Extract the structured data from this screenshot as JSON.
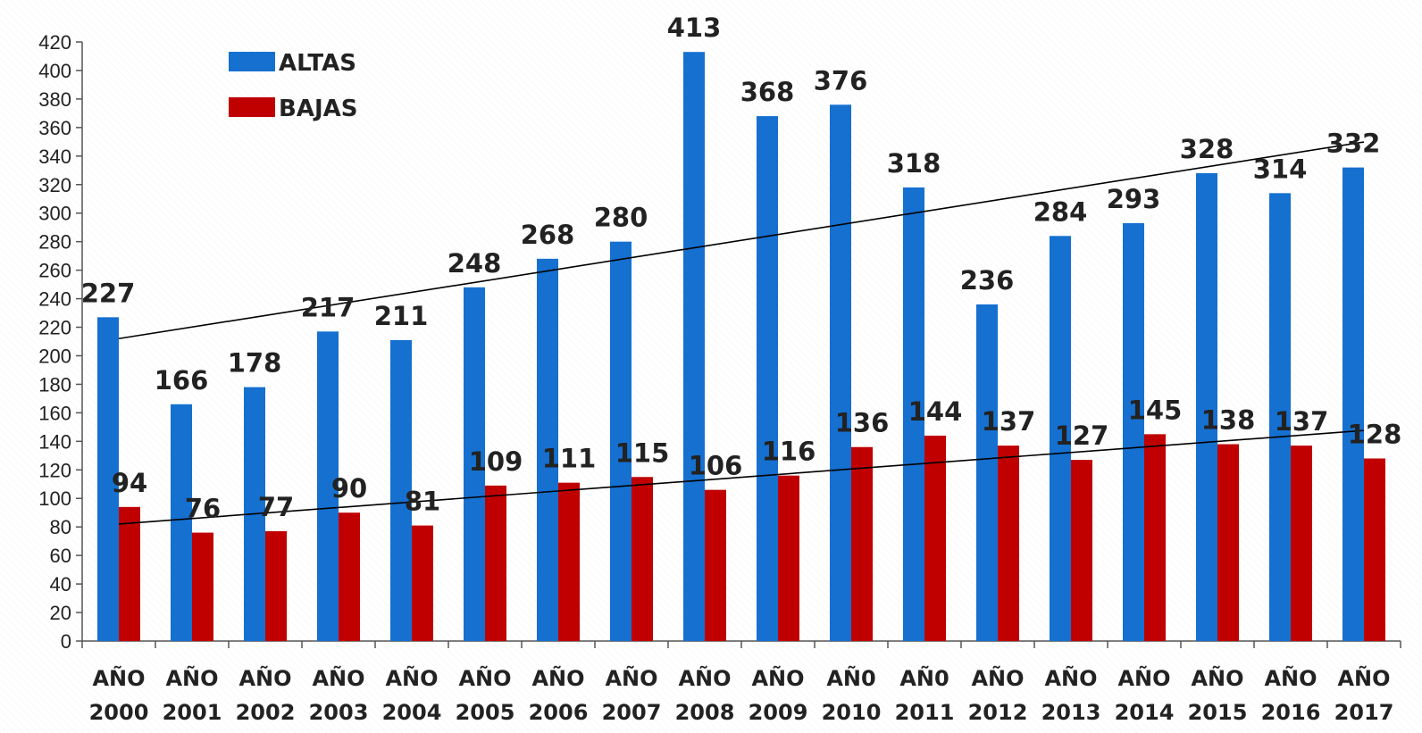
{
  "chart_data": {
    "type": "bar",
    "categories": [
      [
        "AÑO",
        "2000"
      ],
      [
        "AÑO",
        "2001"
      ],
      [
        "AÑO",
        "2002"
      ],
      [
        "AÑO",
        "2003"
      ],
      [
        "AÑO",
        "2004"
      ],
      [
        "AÑO",
        "2005"
      ],
      [
        "AÑO",
        "2006"
      ],
      [
        "AÑO",
        "2007"
      ],
      [
        "AÑO",
        "2008"
      ],
      [
        "AÑO",
        "2009"
      ],
      [
        "AÑ0",
        "2010"
      ],
      [
        "AÑ0",
        "2011"
      ],
      [
        "AÑO",
        "2012"
      ],
      [
        "AÑO",
        "2013"
      ],
      [
        "AÑO",
        "2014"
      ],
      [
        "AÑO",
        "2015"
      ],
      [
        "AÑO",
        "2016"
      ],
      [
        "AÑO",
        "2017"
      ]
    ],
    "series": [
      {
        "name": "ALTAS",
        "color": "#1570D0",
        "values": [
          227,
          166,
          178,
          217,
          211,
          248,
          268,
          280,
          413,
          368,
          376,
          318,
          236,
          284,
          293,
          328,
          314,
          332
        ]
      },
      {
        "name": "BAJAS",
        "color": "#C00000",
        "values": [
          94,
          76,
          77,
          90,
          81,
          109,
          111,
          115,
          106,
          116,
          136,
          144,
          137,
          127,
          145,
          138,
          137,
          128
        ]
      }
    ],
    "trendlines": [
      {
        "series": "ALTAS",
        "type": "linear",
        "color": "#000000"
      },
      {
        "series": "BAJAS",
        "type": "linear",
        "color": "#000000"
      }
    ],
    "ylim": [
      0,
      420
    ],
    "ytick_step": 20,
    "grid": false,
    "legend_position": "top-left"
  }
}
